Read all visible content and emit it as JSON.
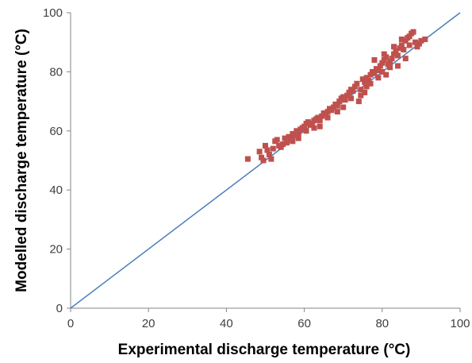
{
  "chart_data": {
    "type": "scatter",
    "title": "",
    "xlabel": "Experimental discharge temperature (°C)",
    "ylabel": "Modelled discharge temperature (°C)",
    "xlim": [
      0,
      100
    ],
    "ylim": [
      0,
      100
    ],
    "xticks": [
      0,
      20,
      40,
      60,
      80,
      100
    ],
    "yticks": [
      0,
      20,
      40,
      60,
      80,
      100
    ],
    "xtick_labels": [
      "0",
      "20",
      "40",
      "60",
      "80",
      "100"
    ],
    "ytick_labels": [
      "0",
      "20",
      "40",
      "60",
      "80",
      "100"
    ],
    "grid": false,
    "legend": "none",
    "reference_line": {
      "x": [
        0,
        100
      ],
      "y": [
        0,
        100
      ],
      "color": "#4a7ebb"
    },
    "series": [
      {
        "marker": "square",
        "color": "#c0504d",
        "points": [
          [
            45.5,
            50.5
          ],
          [
            48.5,
            53.0
          ],
          [
            49.0,
            51.0
          ],
          [
            49.5,
            50.0
          ],
          [
            50.0,
            55.0
          ],
          [
            50.5,
            53.5
          ],
          [
            51.0,
            52.0
          ],
          [
            51.5,
            50.5
          ],
          [
            52.0,
            54.0
          ],
          [
            52.5,
            56.5
          ],
          [
            53.0,
            57.0
          ],
          [
            53.5,
            55.0
          ],
          [
            54.0,
            54.5
          ],
          [
            55.0,
            57.5
          ],
          [
            55.5,
            56.0
          ],
          [
            56.0,
            58.0
          ],
          [
            56.5,
            57.5
          ],
          [
            57.0,
            59.0
          ],
          [
            57.5,
            58.5
          ],
          [
            58.0,
            60.0
          ],
          [
            58.5,
            59.0
          ],
          [
            59.0,
            60.5
          ],
          [
            59.5,
            61.0
          ],
          [
            60.0,
            61.5
          ],
          [
            60.5,
            62.5
          ],
          [
            61.0,
            63.0
          ],
          [
            61.5,
            62.0
          ],
          [
            62.0,
            62.5
          ],
          [
            62.5,
            63.5
          ],
          [
            63.0,
            64.0
          ],
          [
            63.5,
            64.5
          ],
          [
            64.0,
            63.5
          ],
          [
            64.5,
            65.0
          ],
          [
            65.0,
            66.0
          ],
          [
            65.5,
            65.5
          ],
          [
            66.0,
            66.5
          ],
          [
            66.5,
            67.5
          ],
          [
            67.0,
            67.0
          ],
          [
            67.5,
            68.0
          ],
          [
            68.0,
            69.0
          ],
          [
            68.5,
            68.5
          ],
          [
            69.0,
            70.0
          ],
          [
            69.5,
            71.0
          ],
          [
            70.0,
            71.5
          ],
          [
            70.5,
            70.5
          ],
          [
            71.0,
            72.0
          ],
          [
            71.5,
            73.0
          ],
          [
            72.0,
            74.0
          ],
          [
            72.5,
            73.5
          ],
          [
            73.0,
            75.0
          ],
          [
            73.5,
            76.0
          ],
          [
            74.0,
            70.0
          ],
          [
            74.5,
            72.0
          ],
          [
            75.0,
            77.5
          ],
          [
            75.5,
            76.5
          ],
          [
            76.0,
            78.0
          ],
          [
            76.5,
            77.0
          ],
          [
            77.0,
            79.0
          ],
          [
            77.5,
            80.0
          ],
          [
            78.0,
            79.5
          ],
          [
            78.5,
            81.0
          ],
          [
            79.0,
            80.5
          ],
          [
            79.5,
            82.0
          ],
          [
            80.0,
            83.0
          ],
          [
            80.5,
            84.0
          ],
          [
            81.0,
            85.0
          ],
          [
            81.5,
            82.5
          ],
          [
            82.0,
            81.5
          ],
          [
            82.5,
            84.5
          ],
          [
            83.0,
            86.0
          ],
          [
            83.5,
            87.0
          ],
          [
            84.0,
            85.5
          ],
          [
            84.5,
            88.0
          ],
          [
            85.0,
            89.0
          ],
          [
            85.5,
            87.5
          ],
          [
            86.0,
            90.5
          ],
          [
            86.5,
            91.5
          ],
          [
            87.0,
            92.0
          ],
          [
            87.5,
            93.0
          ],
          [
            88.0,
            93.5
          ],
          [
            88.5,
            90.0
          ],
          [
            89.0,
            88.5
          ],
          [
            89.5,
            89.5
          ],
          [
            90.0,
            90.5
          ],
          [
            91.0,
            91.0
          ],
          [
            60.5,
            60.0
          ],
          [
            64.0,
            61.5
          ],
          [
            70.0,
            68.0
          ],
          [
            76.0,
            75.0
          ],
          [
            79.0,
            78.0
          ],
          [
            80.0,
            80.0
          ],
          [
            81.0,
            79.0
          ],
          [
            82.0,
            83.5
          ],
          [
            84.0,
            82.0
          ],
          [
            86.0,
            84.5
          ],
          [
            78.0,
            84.0
          ],
          [
            80.5,
            86.0
          ],
          [
            83.0,
            88.5
          ],
          [
            85.0,
            91.0
          ],
          [
            87.0,
            89.0
          ],
          [
            72.0,
            71.0
          ],
          [
            74.5,
            74.0
          ],
          [
            77.0,
            76.0
          ],
          [
            66.0,
            64.5
          ],
          [
            62.5,
            61.0
          ],
          [
            57.0,
            56.5
          ],
          [
            54.5,
            55.5
          ],
          [
            58.5,
            57.5
          ],
          [
            68.5,
            66.5
          ],
          [
            75.5,
            73.0
          ]
        ]
      }
    ]
  }
}
